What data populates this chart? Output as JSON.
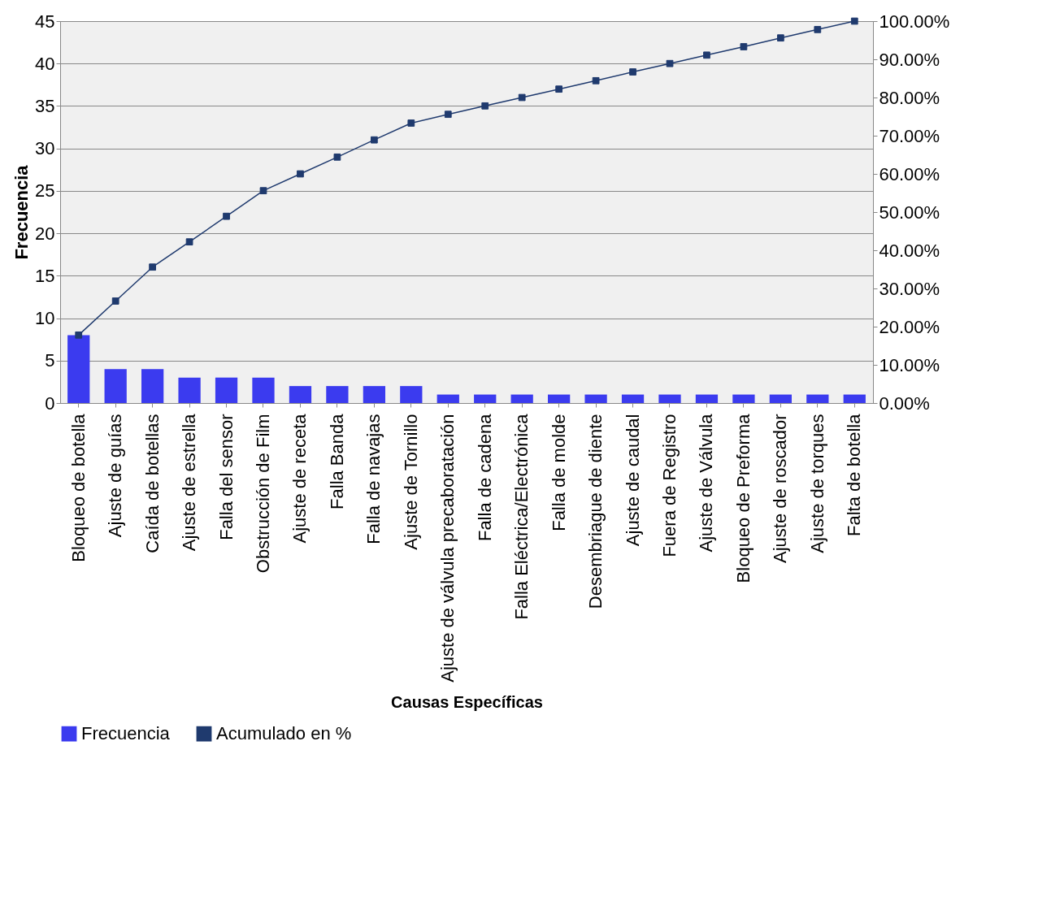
{
  "chart_data": {
    "type": "bar",
    "xlabel": "Causas Específicas",
    "ylabel": "Frecuencia",
    "categories": [
      "Bloqueo de botella",
      "Ajuste de guías",
      "Caída de botellas",
      "Ajuste de estrella",
      "Falla del sensor",
      "Obstrucción de Film",
      "Ajuste de receta",
      "Falla Banda",
      "Falla de navajas",
      "Ajuste de Tornillo",
      "Ajuste de válvula precaboratación",
      "Falla de cadena",
      "Falla Eléctrica/Electrónica",
      "Falla de molde",
      "Desembriague de diente",
      "Ajuste de caudal",
      "Fuera de Registro",
      "Ajuste de Válvula",
      "Bloqueo de Preforma",
      "Ajuste de roscador",
      "Ajuste de torques",
      "Falta de botella"
    ],
    "series": [
      {
        "name": "Frecuencia",
        "color": "#3b3bef",
        "values": [
          8,
          4,
          4,
          3,
          3,
          3,
          2,
          2,
          2,
          2,
          1,
          1,
          1,
          1,
          1,
          1,
          1,
          1,
          1,
          1,
          1,
          1
        ]
      },
      {
        "name": "Acumulado  en %",
        "type": "line",
        "axis": "y2",
        "color": "#1f3a6e",
        "values": [
          17.8,
          26.7,
          35.6,
          42.2,
          48.9,
          55.6,
          60,
          64.4,
          68.9,
          73.3,
          75.6,
          77.8,
          80,
          82.2,
          84.4,
          86.7,
          88.9,
          91.1,
          93.3,
          95.6,
          97.8,
          100
        ]
      }
    ],
    "ylim": [
      0,
      45
    ],
    "yticks": [
      0,
      5,
      10,
      15,
      20,
      25,
      30,
      35,
      40,
      45
    ],
    "y2lim": [
      0,
      100
    ],
    "y2ticks": [
      {
        "value": 0,
        "label": "0.00%"
      },
      {
        "value": 10,
        "label": "10.00%"
      },
      {
        "value": 20,
        "label": "20.00%"
      },
      {
        "value": 30,
        "label": "30.00%"
      },
      {
        "value": 40,
        "label": "40.00%"
      },
      {
        "value": 50,
        "label": "50.00%"
      },
      {
        "value": 60,
        "label": "60.00%"
      },
      {
        "value": 70,
        "label": "70.00%"
      },
      {
        "value": 80,
        "label": "80.00%"
      },
      {
        "value": 90,
        "label": "90.00%"
      },
      {
        "value": 100,
        "label": "100.00%"
      }
    ],
    "grid": "y",
    "legend": "bottom",
    "marker": "square",
    "line_style": "solid"
  }
}
